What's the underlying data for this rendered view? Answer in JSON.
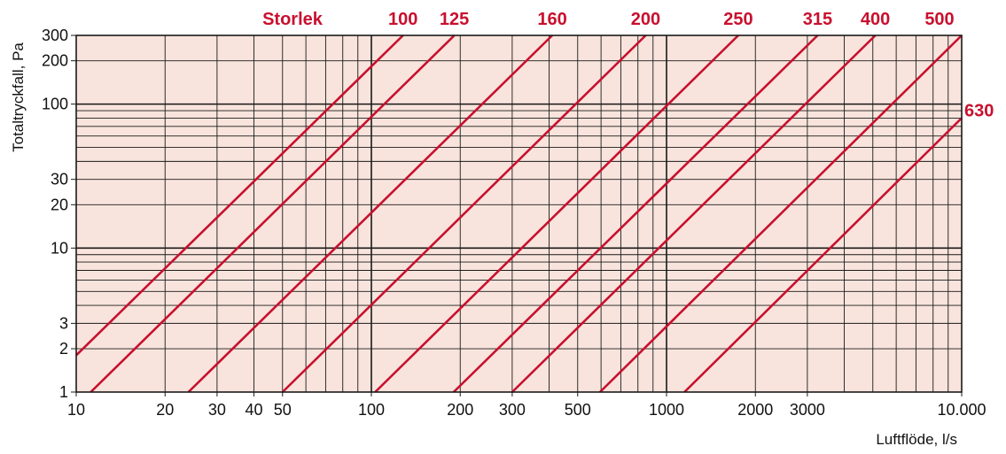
{
  "chart_data": {
    "type": "line",
    "x_scale": "log",
    "y_scale": "log",
    "xlim": [
      10,
      10000
    ],
    "ylim": [
      1,
      300
    ],
    "xlabel": "Luftflöde, l/s",
    "ylabel": "Totaltryckfall, Pa",
    "legend_title": "Storlek",
    "grid": true,
    "colors": {
      "background": "#f8e4dc",
      "grid": "#1a1a1a",
      "series": "#c8102e",
      "label": "#c8102e"
    },
    "x_ticks": [
      {
        "value": 10,
        "label": "10"
      },
      {
        "value": 20,
        "label": "20"
      },
      {
        "value": 30,
        "label": "30"
      },
      {
        "value": 40,
        "label": "40"
      },
      {
        "value": 50,
        "label": "50"
      },
      {
        "value": 100,
        "label": "100"
      },
      {
        "value": 200,
        "label": "200"
      },
      {
        "value": 300,
        "label": "300"
      },
      {
        "value": 500,
        "label": "500"
      },
      {
        "value": 1000,
        "label": "1000"
      },
      {
        "value": 2000,
        "label": "2000"
      },
      {
        "value": 3000,
        "label": "3000"
      },
      {
        "value": 10000,
        "label": "10.000"
      }
    ],
    "y_ticks": [
      {
        "value": 1,
        "label": "1"
      },
      {
        "value": 2,
        "label": "2"
      },
      {
        "value": 3,
        "label": "3"
      },
      {
        "value": 10,
        "label": "10"
      },
      {
        "value": 20,
        "label": "20"
      },
      {
        "value": 30,
        "label": "30"
      },
      {
        "value": 100,
        "label": "100"
      },
      {
        "value": 200,
        "label": "200"
      },
      {
        "value": 300,
        "label": "300"
      }
    ],
    "series": [
      {
        "name": "100",
        "points": [
          [
            10,
            1.8
          ],
          [
            128,
            300
          ]
        ]
      },
      {
        "name": "125",
        "points": [
          [
            11.2,
            1
          ],
          [
            191,
            300
          ]
        ]
      },
      {
        "name": "160",
        "points": [
          [
            24,
            1
          ],
          [
            410,
            300
          ]
        ]
      },
      {
        "name": "200",
        "points": [
          [
            50,
            1
          ],
          [
            850,
            300
          ]
        ]
      },
      {
        "name": "250",
        "points": [
          [
            103,
            1
          ],
          [
            1750,
            300
          ]
        ]
      },
      {
        "name": "315",
        "points": [
          [
            190,
            1
          ],
          [
            3250,
            300
          ]
        ]
      },
      {
        "name": "400",
        "points": [
          [
            300,
            1
          ],
          [
            5100,
            300
          ]
        ]
      },
      {
        "name": "500",
        "points": [
          [
            595,
            1
          ],
          [
            10000,
            300
          ]
        ]
      },
      {
        "name": "630",
        "points": [
          [
            1150,
            1
          ],
          [
            10000,
            80
          ]
        ]
      }
    ]
  }
}
